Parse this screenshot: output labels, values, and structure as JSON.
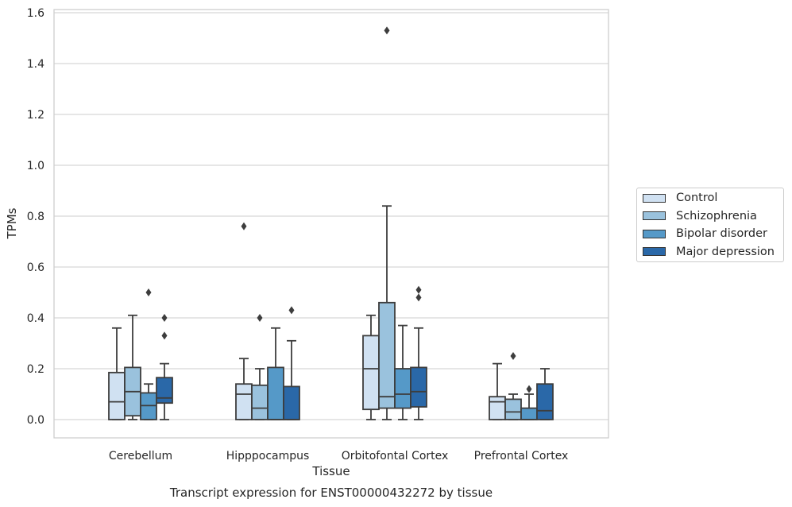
{
  "chart_data": {
    "type": "box",
    "title": "Transcript expression for ENST00000432272 by tissue",
    "xlabel": "Tissue",
    "ylabel": "TPMs",
    "ylim": [
      -0.07,
      1.61
    ],
    "yticks": [
      "0.0",
      "0.2",
      "0.4",
      "0.6",
      "0.8",
      "1.0",
      "1.2",
      "1.4",
      "1.6"
    ],
    "grid": true,
    "legend_position": "right",
    "categories": [
      "Cerebellum",
      "Hipppocampus",
      "Orbitofontal Cortex",
      "Prefrontal Cortex"
    ],
    "series": [
      {
        "name": "Control",
        "color": "#d0e1f2",
        "boxes": [
          {
            "whislo": 0.0,
            "q1": 0.0,
            "med": 0.07,
            "q3": 0.185,
            "whishi": 0.36,
            "fliers": []
          },
          {
            "whislo": 0.0,
            "q1": 0.0,
            "med": 0.1,
            "q3": 0.14,
            "whishi": 0.24,
            "fliers": [
              0.76
            ]
          },
          {
            "whislo": 0.0,
            "q1": 0.04,
            "med": 0.2,
            "q3": 0.33,
            "whishi": 0.41,
            "fliers": []
          },
          {
            "whislo": 0.0,
            "q1": 0.0,
            "med": 0.07,
            "q3": 0.09,
            "whishi": 0.22,
            "fliers": []
          }
        ]
      },
      {
        "name": "Schizophrenia",
        "color": "#9ac2dd",
        "boxes": [
          {
            "whislo": 0.0,
            "q1": 0.015,
            "med": 0.11,
            "q3": 0.205,
            "whishi": 0.41,
            "fliers": []
          },
          {
            "whislo": 0.0,
            "q1": 0.0,
            "med": 0.045,
            "q3": 0.135,
            "whishi": 0.2,
            "fliers": [
              0.4
            ]
          },
          {
            "whislo": 0.0,
            "q1": 0.045,
            "med": 0.09,
            "q3": 0.46,
            "whishi": 0.84,
            "fliers": [
              1.53
            ]
          },
          {
            "whislo": 0.0,
            "q1": 0.0,
            "med": 0.03,
            "q3": 0.08,
            "whishi": 0.1,
            "fliers": [
              0.25
            ]
          }
        ]
      },
      {
        "name": "Bipolar disorder",
        "color": "#5599c8",
        "boxes": [
          {
            "whislo": 0.0,
            "q1": 0.0,
            "med": 0.055,
            "q3": 0.105,
            "whishi": 0.14,
            "fliers": [
              0.5
            ]
          },
          {
            "whislo": 0.0,
            "q1": 0.0,
            "med": 0.0,
            "q3": 0.205,
            "whishi": 0.36,
            "fliers": []
          },
          {
            "whislo": 0.0,
            "q1": 0.045,
            "med": 0.1,
            "q3": 0.2,
            "whishi": 0.37,
            "fliers": []
          },
          {
            "whislo": 0.0,
            "q1": 0.0,
            "med": 0.0,
            "q3": 0.045,
            "whishi": 0.1,
            "fliers": [
              0.12
            ]
          }
        ]
      },
      {
        "name": "Major depression",
        "color": "#2a68a8",
        "boxes": [
          {
            "whislo": 0.0,
            "q1": 0.065,
            "med": 0.085,
            "q3": 0.165,
            "whishi": 0.22,
            "fliers": [
              0.4,
              0.33
            ]
          },
          {
            "whislo": 0.0,
            "q1": 0.0,
            "med": 0.0,
            "q3": 0.13,
            "whishi": 0.31,
            "fliers": [
              0.43
            ]
          },
          {
            "whislo": 0.0,
            "q1": 0.05,
            "med": 0.11,
            "q3": 0.205,
            "whishi": 0.36,
            "fliers": [
              0.51,
              0.48
            ]
          },
          {
            "whislo": 0.0,
            "q1": 0.0,
            "med": 0.035,
            "q3": 0.14,
            "whishi": 0.2,
            "fliers": []
          }
        ]
      }
    ]
  }
}
